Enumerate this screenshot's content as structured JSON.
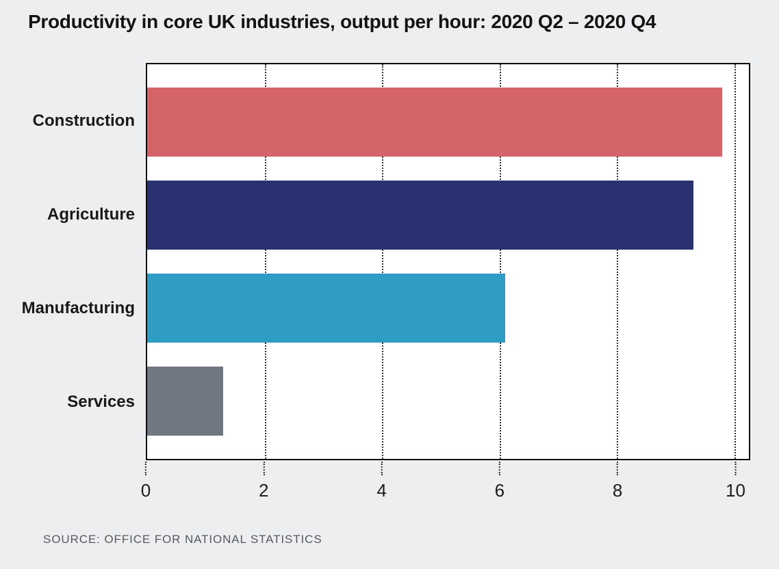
{
  "page": {
    "background_color": "#eceef0",
    "plot_background_color": "#ffffff"
  },
  "title": "Productivity in core UK industries, output per hour: 2020 Q2 – 2020 Q4",
  "source": "SOURCE: OFFICE FOR NATIONAL STATISTICS",
  "chart_data": {
    "type": "bar",
    "orientation": "horizontal",
    "title": "Productivity in core UK industries, output per hour: 2020 Q2 – 2020 Q4",
    "categories": [
      "Construction",
      "Agriculture",
      "Manufacturing",
      "Services"
    ],
    "values": [
      9.8,
      9.3,
      6.1,
      1.3
    ],
    "bar_colors": [
      "#d5636a",
      "#293170",
      "#2f9cc4",
      "#707781"
    ],
    "xlabel": "",
    "ylabel": "",
    "xticks": [
      0,
      2,
      4,
      6,
      8,
      10
    ],
    "xlim": [
      0,
      10.25
    ],
    "grid": "vertical-dotted",
    "legend": "none",
    "source": "SOURCE: OFFICE FOR NATIONAL STATISTICS"
  }
}
